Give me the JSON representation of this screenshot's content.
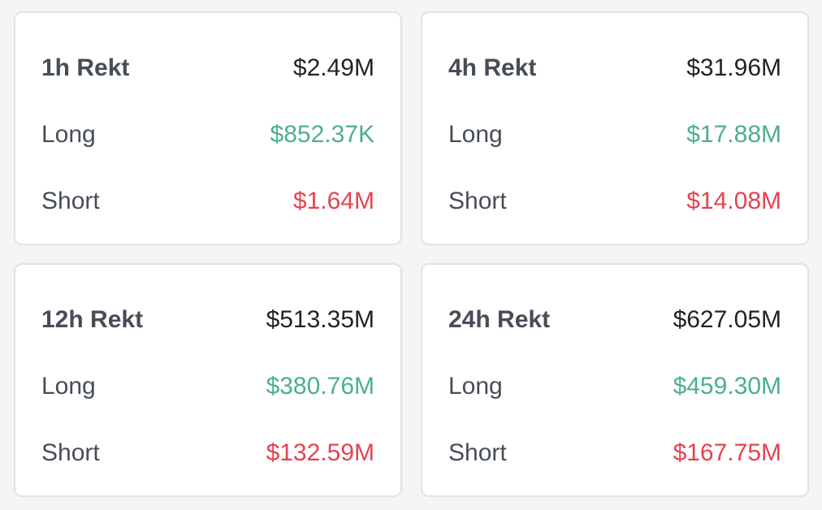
{
  "colors": {
    "long": "#4caf8f",
    "short": "#e5434f",
    "text": "#1e2329",
    "label": "#474d57"
  },
  "cards": [
    {
      "title": "1h Rekt",
      "total": "$2.49M",
      "long_label": "Long",
      "long_value": "$852.37K",
      "short_label": "Short",
      "short_value": "$1.64M"
    },
    {
      "title": "4h Rekt",
      "total": "$31.96M",
      "long_label": "Long",
      "long_value": "$17.88M",
      "short_label": "Short",
      "short_value": "$14.08M"
    },
    {
      "title": "12h Rekt",
      "total": "$513.35M",
      "long_label": "Long",
      "long_value": "$380.76M",
      "short_label": "Short",
      "short_value": "$132.59M"
    },
    {
      "title": "24h Rekt",
      "total": "$627.05M",
      "long_label": "Long",
      "long_value": "$459.30M",
      "short_label": "Short",
      "short_value": "$167.75M"
    }
  ]
}
